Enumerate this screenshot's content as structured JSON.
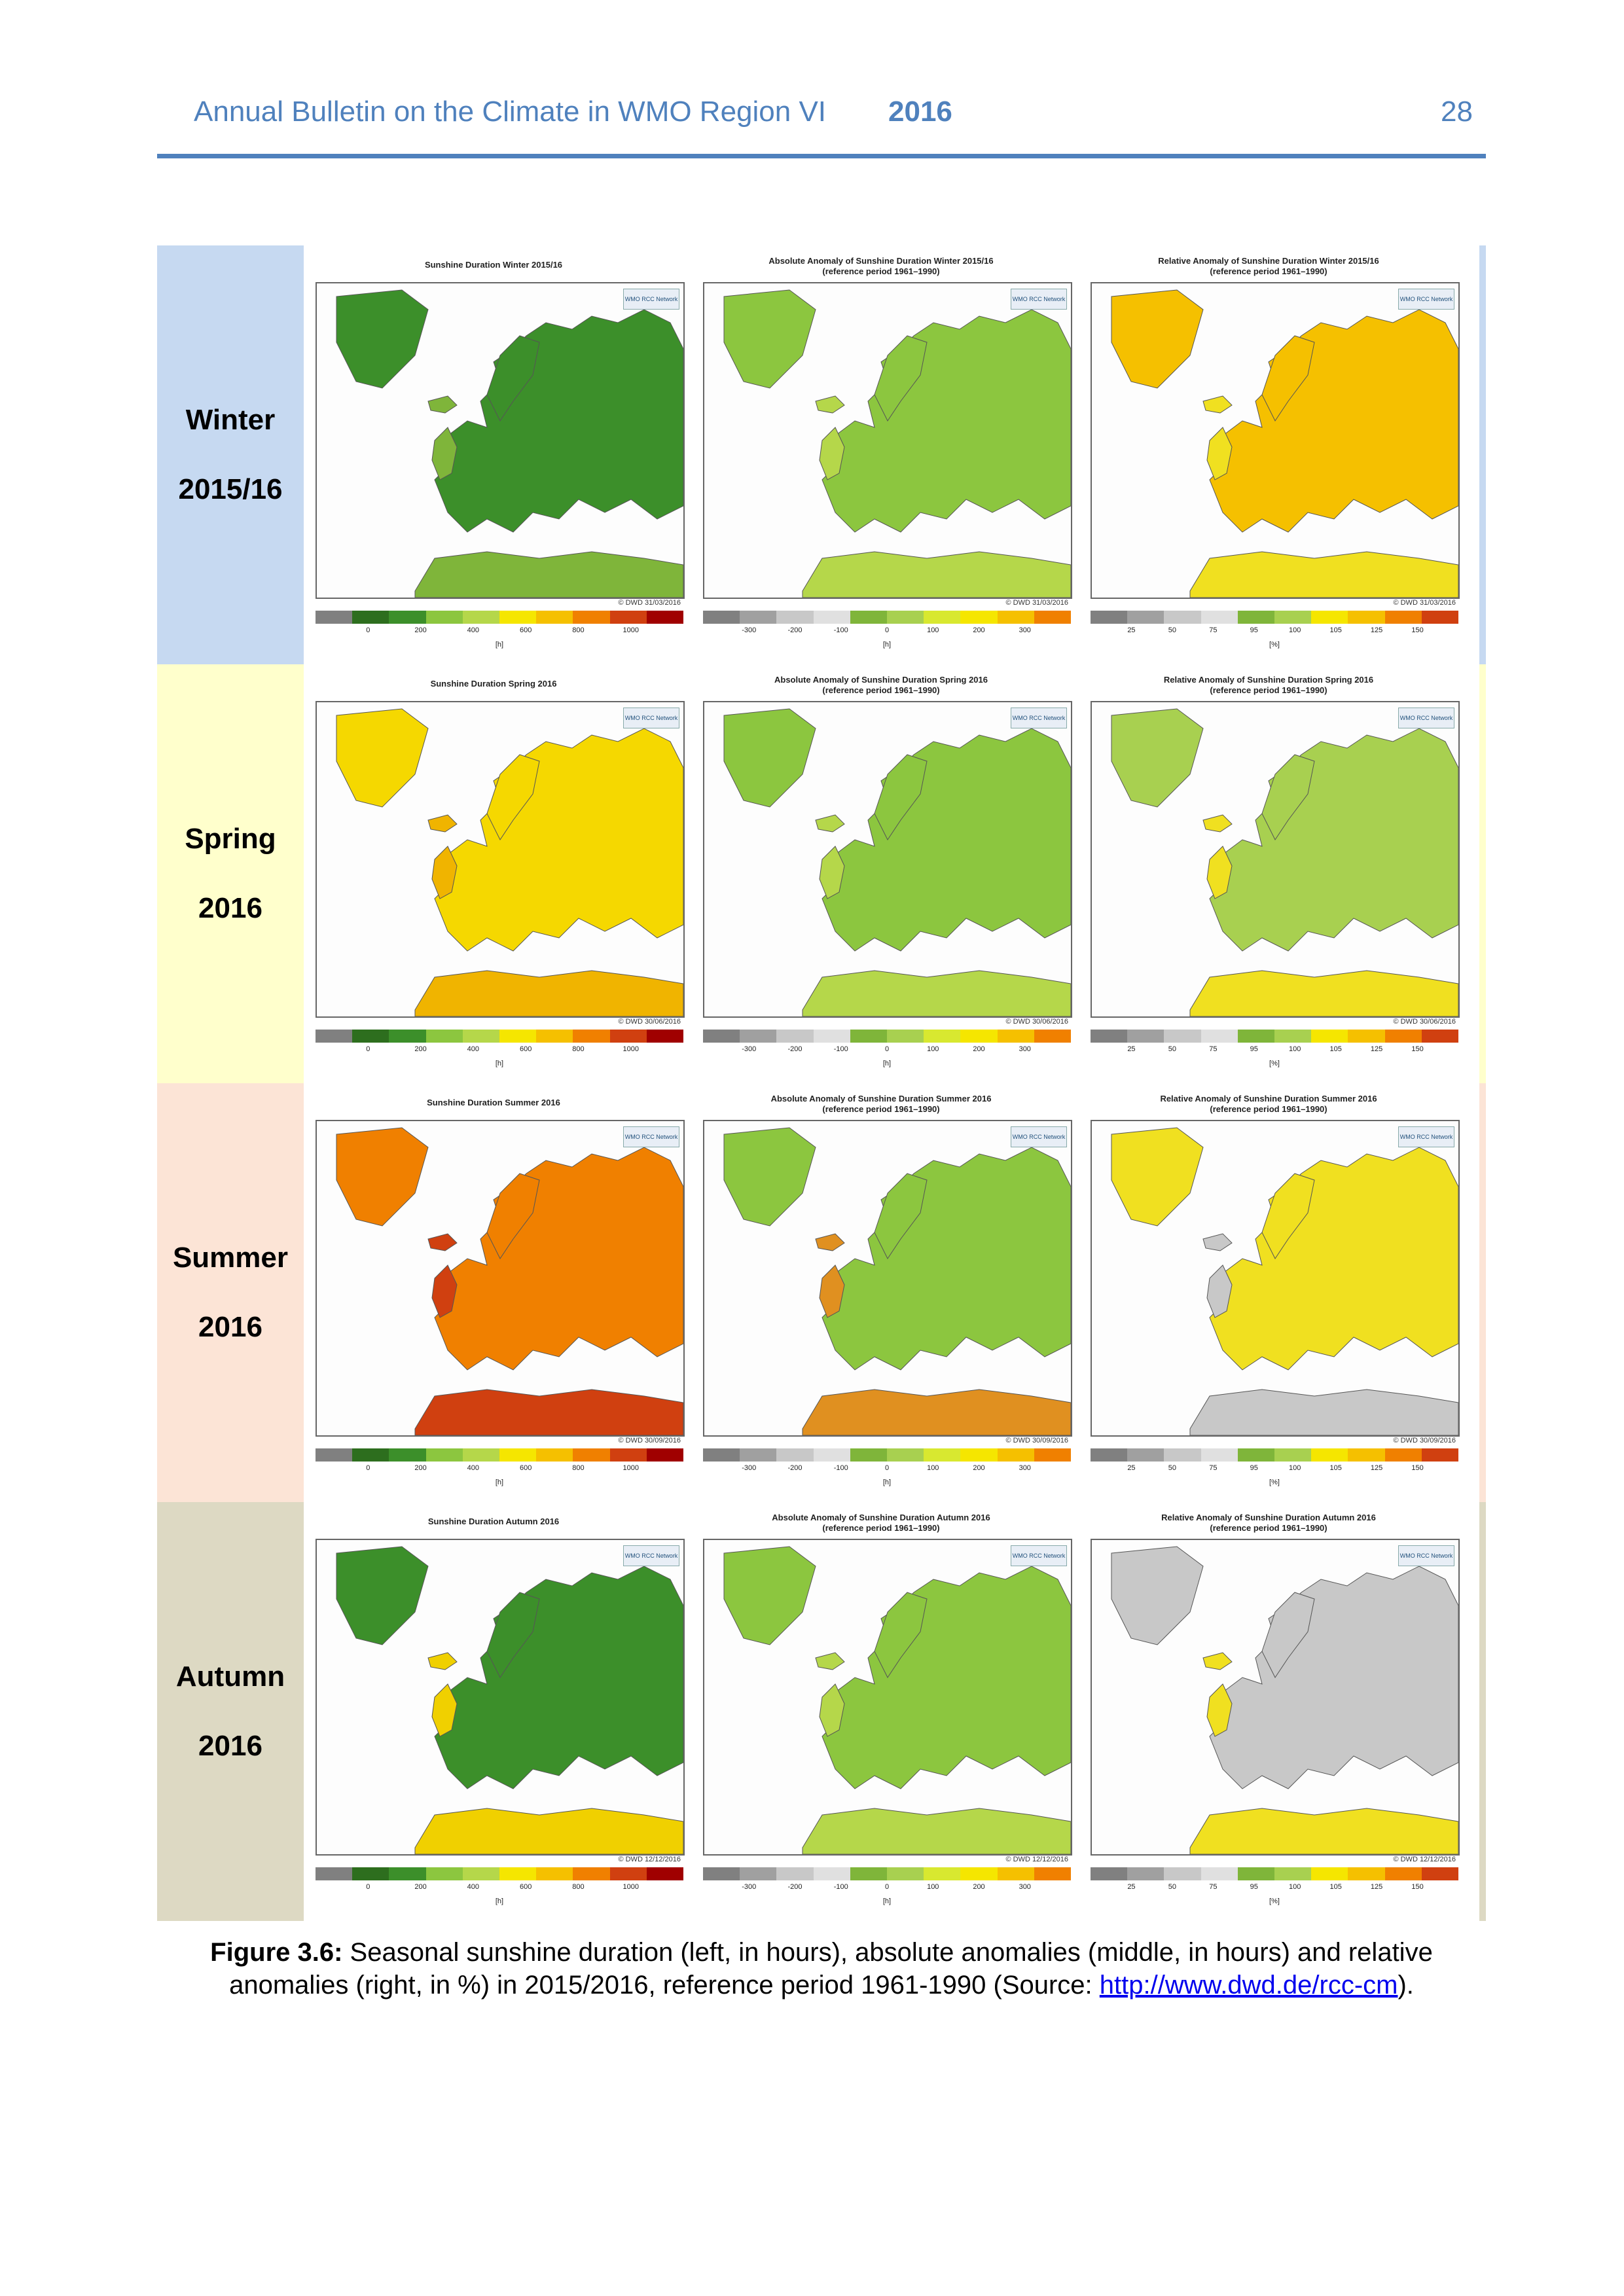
{
  "header": {
    "title": "Annual Bulletin on the Climate in WMO Region VI",
    "year": "2016",
    "page_number": "28"
  },
  "colors": {
    "accent": "#4f81bd",
    "winter_bg": "#c6d9f1",
    "spring_bg": "#ffffcc",
    "summer_bg": "#fce4d6",
    "autumn_bg": "#ddd9c3"
  },
  "seasons": [
    {
      "label_line1": "Winter",
      "label_line2": "2015/16",
      "bg": "#c6d9f1",
      "panels": [
        {
          "title": "Sunshine Duration Winter 2015/16",
          "subtitle": "",
          "stamp": "© DWD 31/03/2016",
          "fill": "#3c8f2a",
          "fill2": "#7fb53a"
        },
        {
          "title": "Absolute Anomaly of Sunshine Duration Winter 2015/16",
          "subtitle": "(reference period 1961–1990)",
          "stamp": "© DWD 31/03/2016",
          "fill": "#8cc63f",
          "fill2": "#b5d74a"
        },
        {
          "title": "Relative Anomaly of Sunshine Duration Winter 2015/16",
          "subtitle": "(reference period 1961–1990)",
          "stamp": "© DWD 31/03/2016",
          "fill": "#f5c000",
          "fill2": "#f0e020"
        }
      ]
    },
    {
      "label_line1": "Spring",
      "label_line2": "2016",
      "bg": "#ffffcc",
      "panels": [
        {
          "title": "Sunshine Duration Spring 2016",
          "subtitle": "",
          "stamp": "© DWD 30/06/2016",
          "fill": "#f5d800",
          "fill2": "#f0b400"
        },
        {
          "title": "Absolute Anomaly of Sunshine Duration Spring 2016",
          "subtitle": "(reference period 1961–1990)",
          "stamp": "© DWD 30/06/2016",
          "fill": "#8cc63f",
          "fill2": "#b5d74a"
        },
        {
          "title": "Relative Anomaly of Sunshine Duration Spring 2016",
          "subtitle": "(reference period 1961–1990)",
          "stamp": "© DWD 30/06/2016",
          "fill": "#a8d050",
          "fill2": "#f0e020"
        }
      ]
    },
    {
      "label_line1": "Summer",
      "label_line2": "2016",
      "bg": "#fce4d6",
      "panels": [
        {
          "title": "Sunshine Duration Summer 2016",
          "subtitle": "",
          "stamp": "© DWD 30/09/2016",
          "fill": "#f08000",
          "fill2": "#d04010"
        },
        {
          "title": "Absolute Anomaly of Sunshine Duration Summer 2016",
          "subtitle": "(reference period 1961–1990)",
          "stamp": "© DWD 30/09/2016",
          "fill": "#8cc63f",
          "fill2": "#e09020"
        },
        {
          "title": "Relative Anomaly of Sunshine Duration Summer 2016",
          "subtitle": "(reference period 1961–1990)",
          "stamp": "© DWD 30/09/2016",
          "fill": "#f0e020",
          "fill2": "#c8c8c8"
        }
      ]
    },
    {
      "label_line1": "Autumn",
      "label_line2": "2016",
      "bg": "#ddd9c3",
      "panels": [
        {
          "title": "Sunshine Duration Autumn 2016",
          "subtitle": "",
          "stamp": "© DWD 12/12/2016",
          "fill": "#3c8f2a",
          "fill2": "#f0d000"
        },
        {
          "title": "Absolute Anomaly of Sunshine Duration Autumn 2016",
          "subtitle": "(reference period 1961–1990)",
          "stamp": "© DWD 12/12/2016",
          "fill": "#8cc63f",
          "fill2": "#b5d74a"
        },
        {
          "title": "Relative Anomaly of Sunshine Duration Autumn 2016",
          "subtitle": "(reference period 1961–1990)",
          "stamp": "© DWD 12/12/2016",
          "fill": "#c8c8c8",
          "fill2": "#f0e020"
        }
      ]
    }
  ],
  "colorbars": [
    {
      "ticks": [
        "0",
        "200",
        "400",
        "600",
        "800",
        "1000"
      ],
      "unit": "[h]",
      "colors": [
        "#808080",
        "#2d6e1e",
        "#3c8f2a",
        "#8cc63f",
        "#b5d74a",
        "#f5e600",
        "#f5c000",
        "#f08000",
        "#d04010",
        "#a00000"
      ]
    },
    {
      "ticks": [
        "-300",
        "-200",
        "-100",
        "0",
        "100",
        "200",
        "300"
      ],
      "unit": "[h]",
      "colors": [
        "#808080",
        "#a0a0a0",
        "#c8c8c8",
        "#e0e0e0",
        "#7fb53a",
        "#a8d050",
        "#d8e830",
        "#f5e600",
        "#f5c000",
        "#f08000"
      ]
    },
    {
      "ticks": [
        "25",
        "50",
        "75",
        "95",
        "100",
        "105",
        "125",
        "150"
      ],
      "unit": "[%]",
      "colors": [
        "#808080",
        "#a0a0a0",
        "#c8c8c8",
        "#e0e0e0",
        "#7fb53a",
        "#a8d050",
        "#f5e600",
        "#f5c000",
        "#f08000",
        "#d04010"
      ]
    }
  ],
  "wmo_badge": "WMO RCC Network",
  "caption": {
    "label": "Figure 3.6:",
    "text": " Seasonal sunshine duration (left, in hours), absolute anomalies (middle, in hours) and relative anomalies (right, in %) in 2015/2016, reference period 1961-1990 (Source: ",
    "link_text": "http://www.dwd.de/rcc-cm",
    "end": ")."
  }
}
